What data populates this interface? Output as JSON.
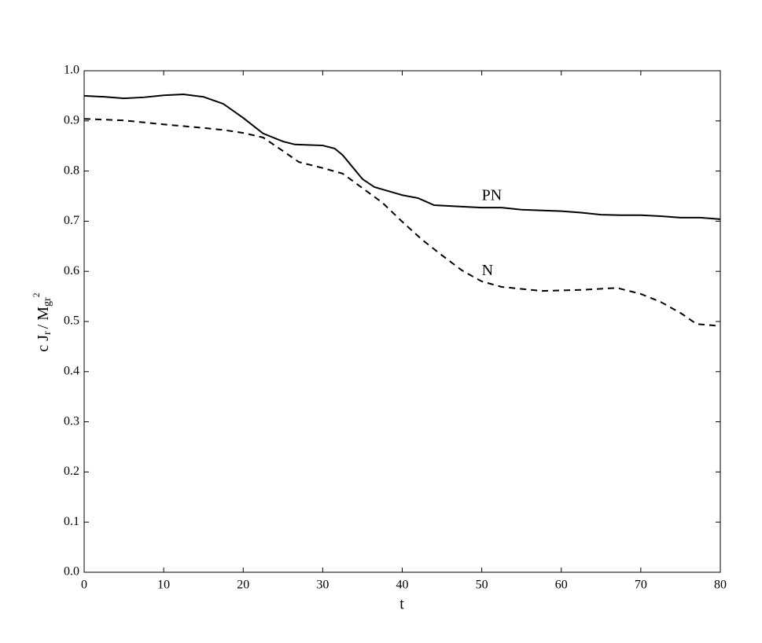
{
  "chart_data": {
    "type": "line",
    "xlabel": "t",
    "ylabel": [
      "c J",
      "r",
      "/ M",
      "gr",
      "2"
    ],
    "xlim": [
      0,
      80
    ],
    "xticks": [
      0,
      10,
      20,
      30,
      40,
      50,
      60,
      70,
      80
    ],
    "ylim": [
      0,
      1
    ],
    "yticks": [
      {
        "value": 0,
        "label": "0.0"
      },
      0.1,
      0.2,
      0.3,
      0.4,
      0.5,
      0.6,
      0.7,
      0.8,
      0.9,
      {
        "value": 1,
        "label": "1.0"
      }
    ],
    "grid": false,
    "series": [
      {
        "name": "PN",
        "color": "#000000",
        "dash": false,
        "x": [
          0,
          2.5,
          5,
          7.5,
          10,
          12.5,
          15,
          17.5,
          20,
          22.5,
          25,
          26.5,
          30,
          31.5,
          32.5,
          35,
          36.5,
          40,
          42,
          44,
          47.5,
          50,
          52.5,
          55,
          60,
          62.5,
          65,
          67.5,
          70,
          72.5,
          75,
          77.5,
          80
        ],
        "values": [
          0.95,
          0.948,
          0.945,
          0.947,
          0.951,
          0.953,
          0.948,
          0.934,
          0.906,
          0.875,
          0.859,
          0.853,
          0.851,
          0.845,
          0.832,
          0.784,
          0.768,
          0.752,
          0.746,
          0.732,
          0.729,
          0.727,
          0.727,
          0.723,
          0.72,
          0.717,
          0.713,
          0.712,
          0.712,
          0.71,
          0.707,
          0.707,
          0.704
        ]
      },
      {
        "name": "N",
        "color": "#000000",
        "dash": true,
        "x": [
          0,
          5,
          10,
          15,
          17.5,
          20,
          22.5,
          25,
          27,
          30,
          32.5,
          35,
          37.5,
          40,
          42.5,
          45,
          47.5,
          50,
          52.5,
          57.5,
          62.5,
          67,
          70,
          72.5,
          75,
          77,
          80
        ],
        "values": [
          0.904,
          0.901,
          0.893,
          0.886,
          0.882,
          0.876,
          0.867,
          0.84,
          0.818,
          0.806,
          0.795,
          0.766,
          0.737,
          0.699,
          0.663,
          0.632,
          0.602,
          0.58,
          0.569,
          0.561,
          0.563,
          0.567,
          0.555,
          0.539,
          0.517,
          0.495,
          0.491
        ]
      }
    ],
    "annotations": [
      {
        "text": "PN",
        "x": 50,
        "y": 0.749
      },
      {
        "text": "N",
        "x": 50,
        "y": 0.6
      }
    ]
  }
}
